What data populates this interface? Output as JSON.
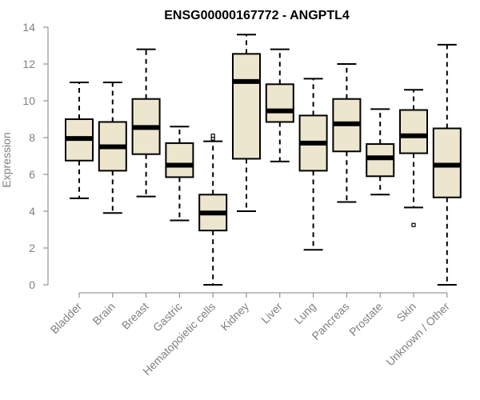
{
  "chart_data": {
    "type": "boxplot",
    "title": "ENSG00000167772 - ANGPTL4",
    "xlabel": "",
    "ylabel": "Expression",
    "ylim": [
      0,
      14
    ],
    "yticks": [
      0,
      2,
      4,
      6,
      8,
      10,
      12,
      14
    ],
    "grid": false,
    "colors": {
      "box_fill": "#ede6cf",
      "box_stroke": "#000000",
      "axis": "#808080"
    },
    "categories": [
      "Bladder",
      "Brain",
      "Breast",
      "Gastric",
      "Hematopoietic cells",
      "Kidney",
      "Liver",
      "Lung",
      "Pancreas",
      "Prostate",
      "Skin",
      "Unknown / Other"
    ],
    "boxes": [
      {
        "category": "Bladder",
        "whisker_low": 4.7,
        "q1": 6.75,
        "median": 7.95,
        "q3": 9.0,
        "whisker_high": 11.0,
        "outliers": []
      },
      {
        "category": "Brain",
        "whisker_low": 3.9,
        "q1": 6.2,
        "median": 7.5,
        "q3": 8.85,
        "whisker_high": 11.0,
        "outliers": []
      },
      {
        "category": "Breast",
        "whisker_low": 4.8,
        "q1": 7.1,
        "median": 8.55,
        "q3": 10.1,
        "whisker_high": 12.8,
        "outliers": []
      },
      {
        "category": "Gastric",
        "whisker_low": 3.5,
        "q1": 5.85,
        "median": 6.5,
        "q3": 7.7,
        "whisker_high": 8.6,
        "outliers": []
      },
      {
        "category": "Hematopoietic cells",
        "whisker_low": 0.0,
        "q1": 2.95,
        "median": 3.9,
        "q3": 4.9,
        "whisker_high": 7.8,
        "outliers": [
          7.95,
          8.1
        ]
      },
      {
        "category": "Kidney",
        "whisker_low": 4.0,
        "q1": 6.85,
        "median": 11.05,
        "q3": 12.55,
        "whisker_high": 13.6,
        "outliers": []
      },
      {
        "category": "Liver",
        "whisker_low": 6.7,
        "q1": 8.85,
        "median": 9.45,
        "q3": 10.9,
        "whisker_high": 12.8,
        "outliers": []
      },
      {
        "category": "Lung",
        "whisker_low": 1.9,
        "q1": 6.2,
        "median": 7.7,
        "q3": 9.2,
        "whisker_high": 11.2,
        "outliers": []
      },
      {
        "category": "Pancreas",
        "whisker_low": 4.5,
        "q1": 7.25,
        "median": 8.75,
        "q3": 10.1,
        "whisker_high": 12.0,
        "outliers": []
      },
      {
        "category": "Prostate",
        "whisker_low": 4.9,
        "q1": 5.9,
        "median": 6.9,
        "q3": 7.65,
        "whisker_high": 9.55,
        "outliers": []
      },
      {
        "category": "Skin",
        "whisker_low": 4.2,
        "q1": 7.15,
        "median": 8.1,
        "q3": 9.5,
        "whisker_high": 10.6,
        "outliers": [
          3.25
        ]
      },
      {
        "category": "Unknown / Other",
        "whisker_low": 0.0,
        "q1": 4.75,
        "median": 6.5,
        "q3": 8.5,
        "whisker_high": 13.05,
        "outliers": []
      }
    ]
  }
}
